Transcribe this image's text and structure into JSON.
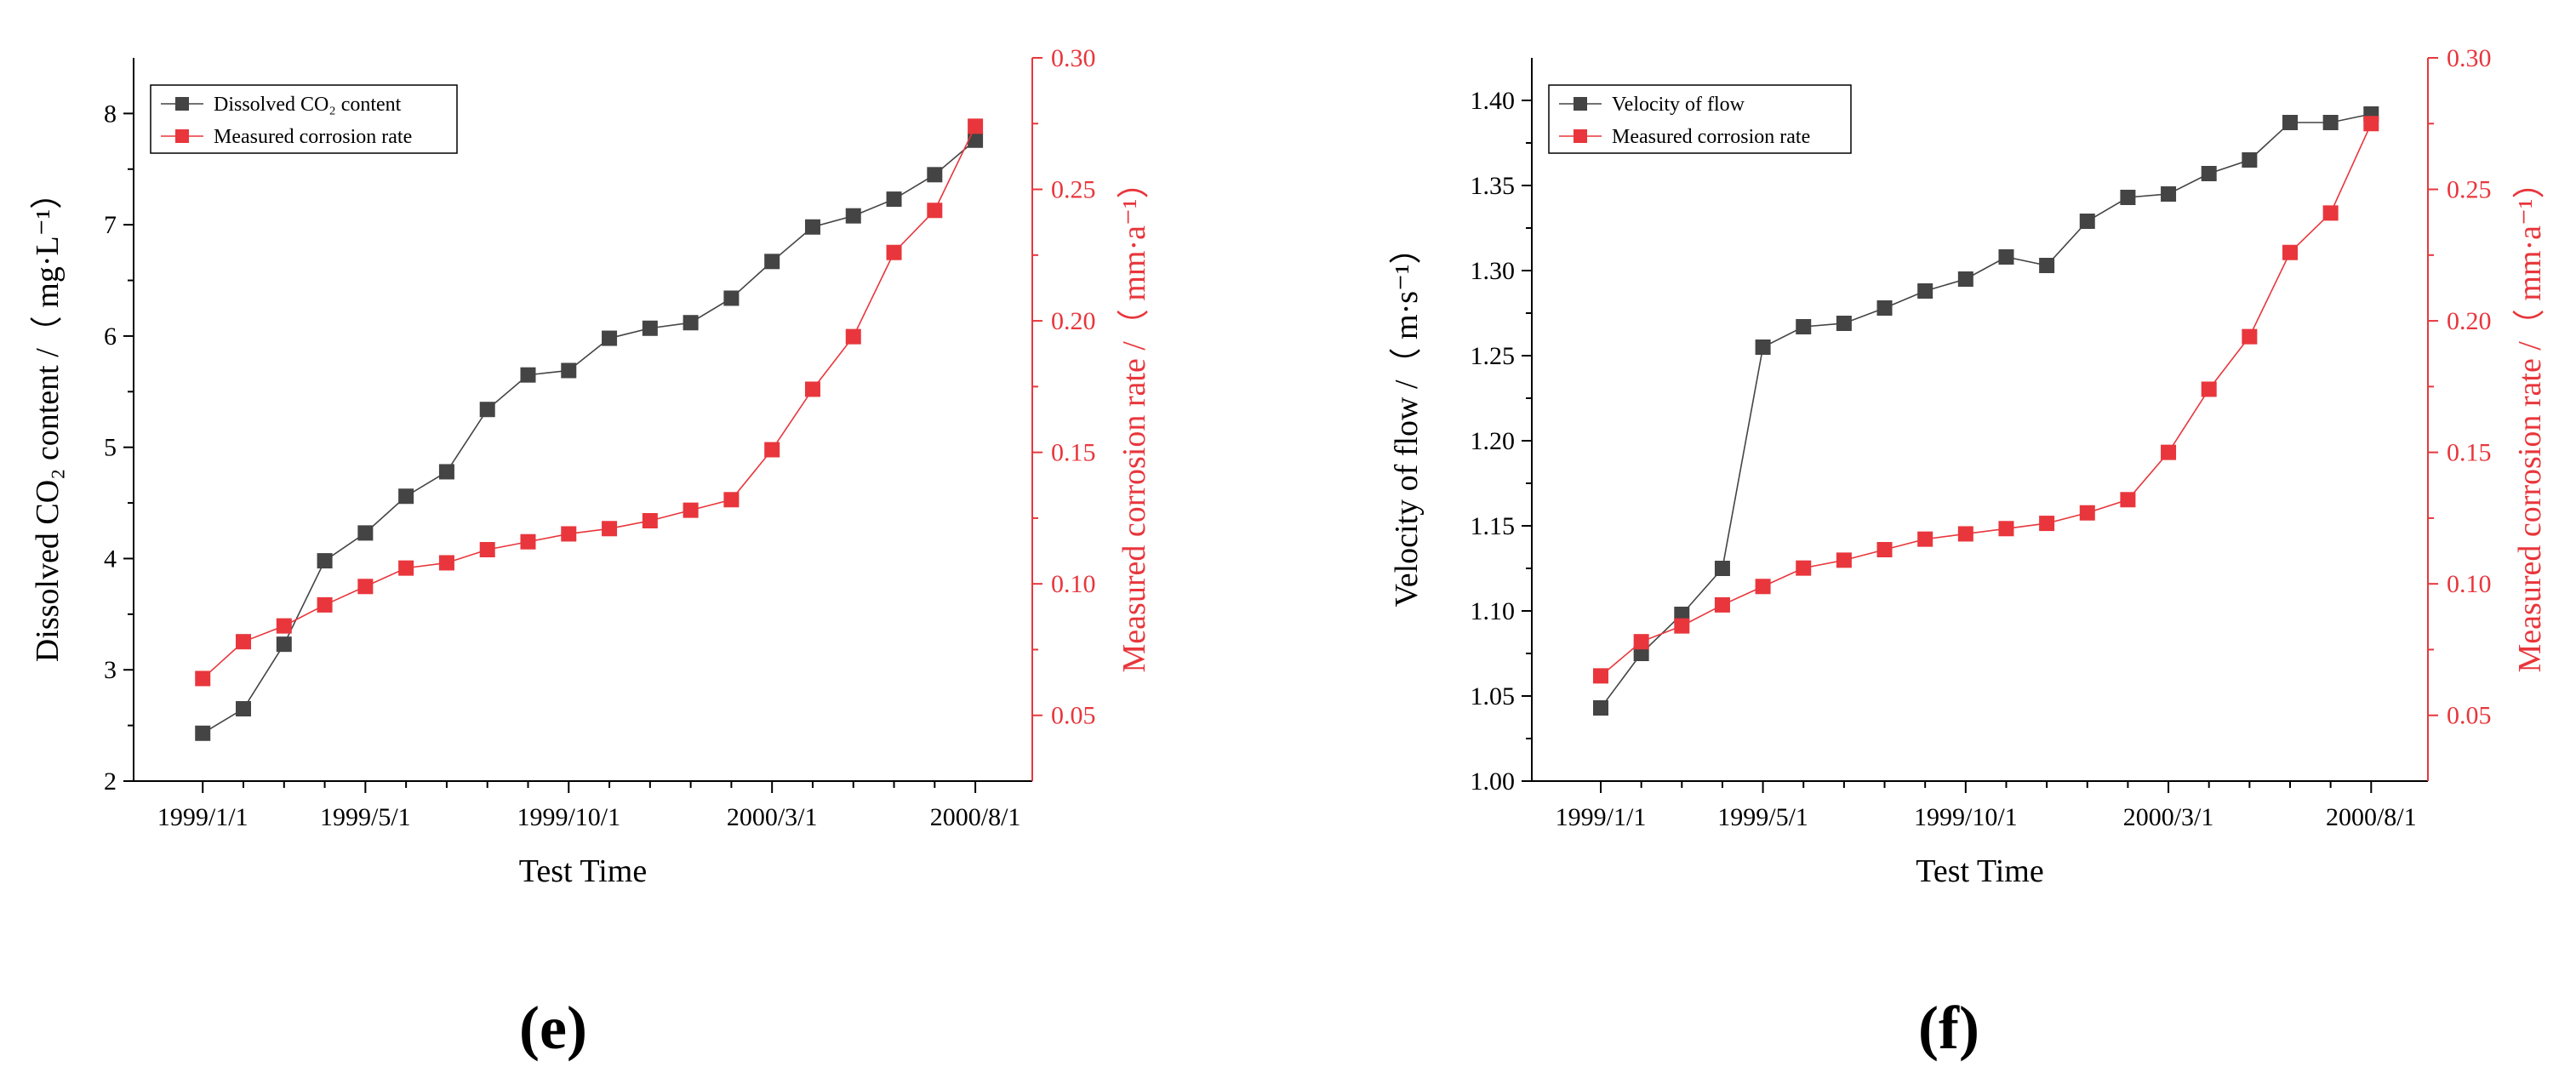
{
  "colors": {
    "left_series": "#444444",
    "right_series": "#e8363c",
    "axis": "#000000"
  },
  "x_tick_labels": [
    "1999/1/1",
    "1999/5/1",
    "1999/10/1",
    "2000/3/1",
    "2000/8/1"
  ],
  "chart_data": [
    {
      "type": "line",
      "panel_label": "(e)",
      "xlabel": "Test Time",
      "ylabel_left": "Dissolved CO₂ content /（ mg·L⁻¹）",
      "ylabel_right": "Measured corrosion rate /（ mm·a⁻¹）",
      "ylim_left": [
        2,
        8.5
      ],
      "yticks_left": [
        "2",
        "3",
        "4",
        "5",
        "6",
        "7",
        "8"
      ],
      "ylim_right": [
        0.025,
        0.3
      ],
      "yticks_right": [
        "0.05",
        "0.10",
        "0.15",
        "0.20",
        "0.25",
        "0.30"
      ],
      "x": [
        0,
        0.5,
        1,
        1.5,
        2,
        2.5,
        3,
        3.5,
        4,
        4.5,
        5,
        5.5,
        6,
        6.5,
        7,
        7.5,
        8,
        8.5,
        9,
        9.5
      ],
      "series": [
        {
          "name": "Dissolved CO₂ content",
          "axis": "left",
          "marker": "square",
          "values": [
            2.43,
            2.65,
            3.23,
            3.98,
            4.23,
            4.56,
            4.78,
            5.34,
            5.65,
            5.69,
            5.98,
            6.07,
            6.12,
            6.34,
            6.67,
            6.98,
            7.08,
            7.23,
            7.45,
            7.76
          ]
        },
        {
          "name": "Measured corrosion rate",
          "axis": "right",
          "marker": "square",
          "values": [
            0.064,
            0.078,
            0.084,
            0.092,
            0.099,
            0.106,
            0.108,
            0.113,
            0.116,
            0.119,
            0.121,
            0.124,
            0.128,
            0.132,
            0.151,
            0.174,
            0.194,
            0.226,
            0.242,
            0.274
          ]
        }
      ]
    },
    {
      "type": "line",
      "panel_label": "(f)",
      "xlabel": "Test Time",
      "ylabel_left": "Velocity of flow /（ m·s⁻¹）",
      "ylabel_right": "Measured corrosion rate /（ mm·a⁻¹）",
      "ylim_left": [
        1.0,
        1.425
      ],
      "yticks_left": [
        "1.00",
        "1.05",
        "1.10",
        "1.15",
        "1.20",
        "1.25",
        "1.30",
        "1.35",
        "1.40"
      ],
      "ylim_right": [
        0.025,
        0.3
      ],
      "yticks_right": [
        "0.05",
        "0.10",
        "0.15",
        "0.20",
        "0.25",
        "0.30"
      ],
      "x": [
        0,
        0.5,
        1,
        1.5,
        2,
        2.5,
        3,
        3.5,
        4,
        4.5,
        5,
        5.5,
        6,
        6.5,
        7,
        7.5,
        8,
        8.5,
        9,
        9.5
      ],
      "series": [
        {
          "name": "Velocity of flow",
          "axis": "left",
          "marker": "square",
          "values": [
            1.043,
            1.075,
            1.098,
            1.125,
            1.255,
            1.267,
            1.269,
            1.278,
            1.288,
            1.295,
            1.308,
            1.303,
            1.329,
            1.343,
            1.345,
            1.357,
            1.365,
            1.387,
            1.387,
            1.392
          ]
        },
        {
          "name": "Measured corrosion rate",
          "axis": "right",
          "marker": "square",
          "values": [
            0.065,
            0.078,
            0.084,
            0.092,
            0.099,
            0.106,
            0.109,
            0.113,
            0.117,
            0.119,
            0.121,
            0.123,
            0.127,
            0.132,
            0.15,
            0.174,
            0.194,
            0.226,
            0.241,
            0.275
          ]
        }
      ]
    }
  ]
}
